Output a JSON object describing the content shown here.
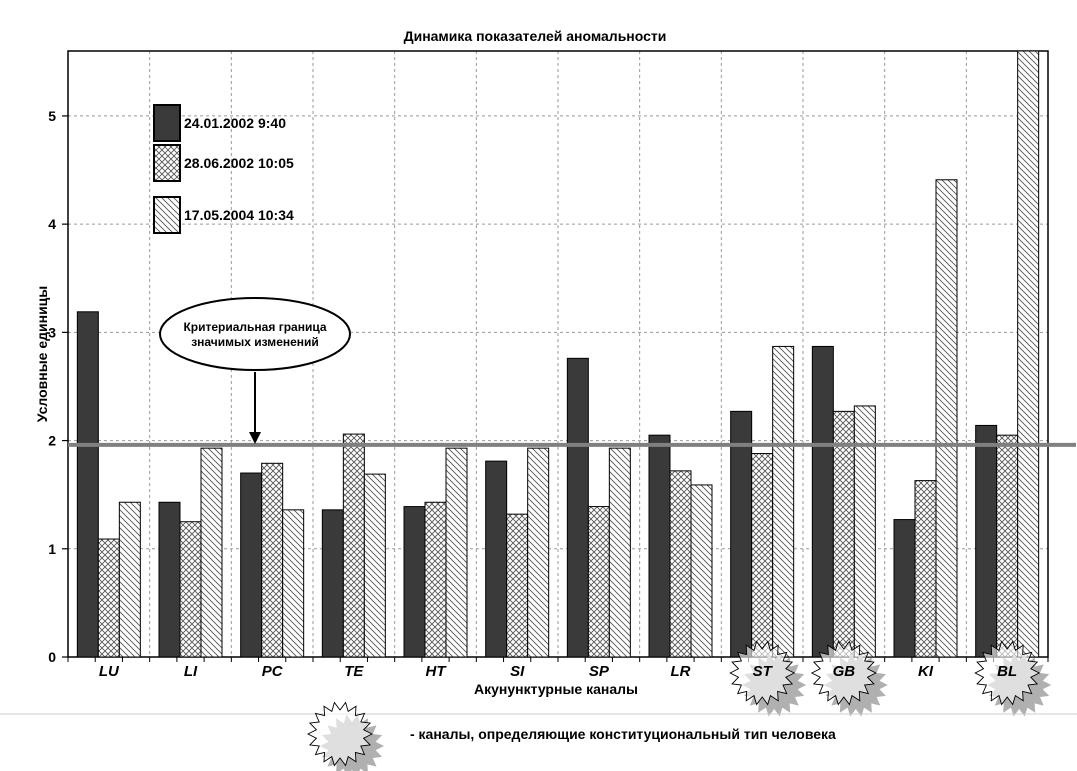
{
  "colors": {
    "series1": "#3a3a3a",
    "hatch": "#555555",
    "threshold_line": "#808080",
    "grid": "#9a9a9a",
    "star_fill": "#b0b0b0"
  },
  "chart_data": {
    "type": "bar",
    "title": "Динамика показателей аномальности",
    "xlabel": "Акунунктурные каналы",
    "ylabel": "Условные единицы",
    "ylim": [
      0,
      5.6
    ],
    "yticks": [
      "0",
      "1",
      "2",
      "3",
      "4",
      "5"
    ],
    "grid": true,
    "legend_position": "top-left",
    "categories": [
      "LU",
      "LI",
      "PC",
      "TE",
      "HT",
      "SI",
      "SP",
      "LR",
      "ST",
      "GB",
      "KI",
      "BL"
    ],
    "series": [
      {
        "name": "24.01.2002  9:40",
        "pattern": "solid-dark",
        "values": [
          3.19,
          1.43,
          1.7,
          1.36,
          1.39,
          1.81,
          2.76,
          2.05,
          2.27,
          2.87,
          1.27,
          2.14
        ]
      },
      {
        "name": "28.06.2002  10:05",
        "pattern": "crosshatch",
        "values": [
          1.09,
          1.25,
          1.79,
          2.06,
          1.43,
          1.32,
          1.39,
          1.72,
          1.88,
          2.27,
          1.63,
          2.05
        ]
      },
      {
        "name": "17.05.2004  10:34",
        "pattern": "diagonal-hatch",
        "values": [
          1.43,
          1.93,
          1.36,
          1.69,
          1.93,
          1.93,
          1.93,
          1.59,
          2.87,
          2.32,
          4.41,
          5.6
        ]
      }
    ],
    "threshold": {
      "value": 1.96,
      "label_line1": "Критериальная граница",
      "label_line2": "значимых изменений"
    },
    "constitutional_channels": [
      "ST",
      "GB",
      "BL"
    ]
  },
  "footnote": "- каналы,  определяющие конституциональный тип человека"
}
